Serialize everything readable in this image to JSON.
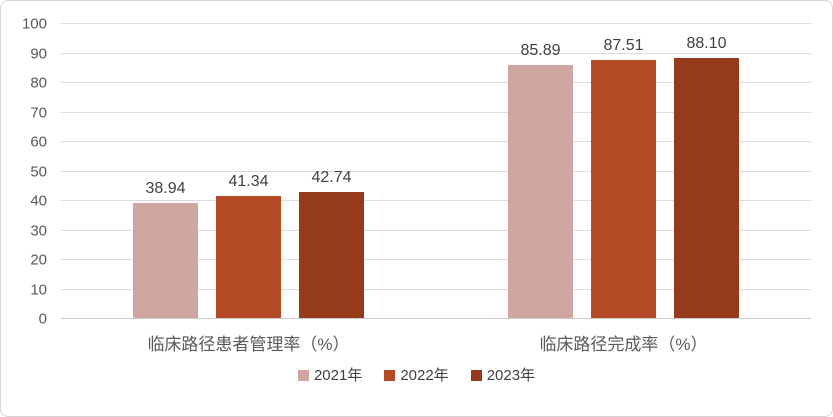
{
  "chart": {
    "background": "#ffffff",
    "border_color": "#d6d6d6",
    "gridline_color": "#dcdcdc",
    "axis_line_color": "#c9c9c9",
    "axis_text_color": "#595959",
    "data_label_color": "#404040",
    "category_label_color": "#595959",
    "legend_text_color": "#404040"
  },
  "chart_data": {
    "type": "bar",
    "title": "",
    "xlabel": "",
    "ylabel": "",
    "ylim": [
      0,
      100
    ],
    "ytick_step": 10,
    "yticks": [
      0,
      10,
      20,
      30,
      40,
      50,
      60,
      70,
      80,
      90,
      100
    ],
    "grid": true,
    "legend_position": "bottom",
    "categories": [
      "临床路径患者管理率（%）",
      "临床路径完成率（%）"
    ],
    "series": [
      {
        "name": "2021年",
        "color": "#d2a6a0",
        "values": [
          38.94,
          85.89
        ],
        "labels": [
          "38.94",
          "85.89"
        ]
      },
      {
        "name": "2022年",
        "color": "#b54a26",
        "values": [
          41.34,
          87.51
        ],
        "labels": [
          "41.34",
          "87.51"
        ]
      },
      {
        "name": "2023年",
        "color": "#963a1c",
        "values": [
          42.74,
          88.1
        ],
        "labels": [
          "42.74",
          "88.10"
        ]
      }
    ]
  }
}
